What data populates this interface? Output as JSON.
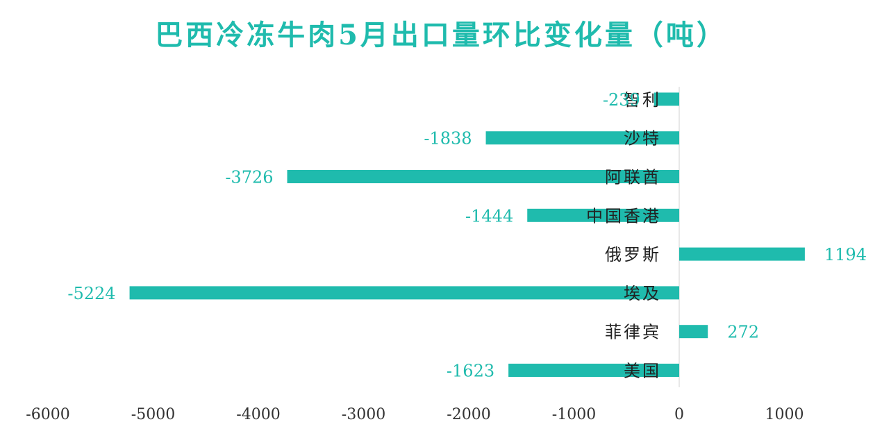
{
  "chart_data": {
    "type": "bar",
    "orientation": "horizontal",
    "title": "巴西冷冻牛肉5月出口量环比变化量（吨）",
    "xlabel": "",
    "ylabel": "",
    "categories": [
      "智利",
      "沙特",
      "阿联酋",
      "中国香港",
      "俄罗斯",
      "埃及",
      "菲律宾",
      "美国"
    ],
    "values": [
      -239,
      -1838,
      -3726,
      -1444,
      1194,
      -5224,
      272,
      -1623
    ],
    "value_labels": [
      "-239",
      "-1838",
      "-3726",
      "-1444",
      "1194",
      "-5224",
      "272",
      "-1623"
    ],
    "xlim": [
      -6000,
      1500
    ],
    "xticks": [
      -6000,
      -5000,
      -4000,
      -3000,
      -2000,
      -1000,
      0,
      1000
    ],
    "xtick_labels": [
      "-6000",
      "-5000",
      "-4000",
      "-3000",
      "-2000",
      "-1000",
      "0",
      "1000"
    ],
    "grid": false,
    "legend": "none"
  },
  "colors": {
    "bar": "#1fbbad",
    "title": "#1fbbad",
    "value_label": "#1fbbad",
    "category_label": "#222222",
    "axis_line": "#d0d0d0",
    "tick_label": "#333333"
  }
}
